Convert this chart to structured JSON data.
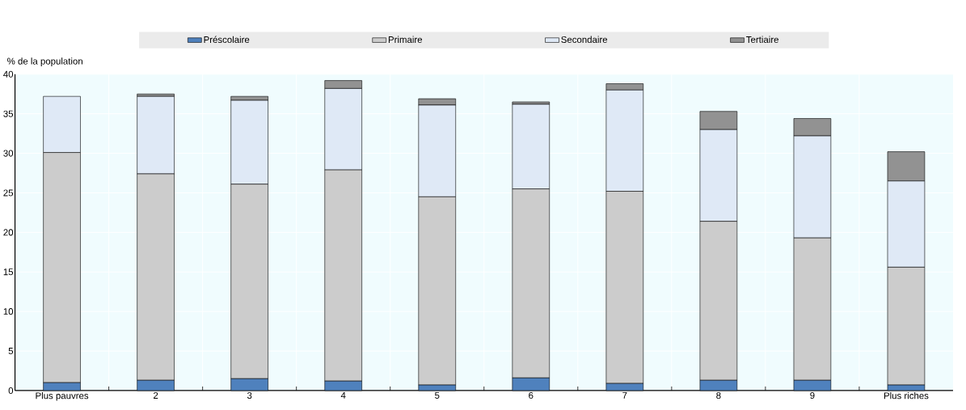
{
  "chart_data": {
    "type": "bar",
    "stacked": true,
    "ylabel": "% de la population",
    "categories": [
      "Plus pauvres",
      "2",
      "3",
      "4",
      "5",
      "6",
      "7",
      "8",
      "9",
      "Plus riches"
    ],
    "series": [
      {
        "name": "Préscolaire",
        "color": "#4f81bd",
        "values": [
          1.0,
          1.3,
          1.5,
          1.2,
          0.7,
          1.6,
          0.9,
          1.3,
          1.3,
          0.7
        ]
      },
      {
        "name": "Primaire",
        "color": "#cccccc",
        "values": [
          29.1,
          26.1,
          24.6,
          26.7,
          23.8,
          23.9,
          24.3,
          20.1,
          18.0,
          14.9
        ]
      },
      {
        "name": "Secondaire",
        "color": "#dfe9f6",
        "values": [
          7.1,
          9.8,
          10.6,
          10.3,
          11.6,
          10.7,
          12.8,
          11.6,
          12.9,
          10.9
        ]
      },
      {
        "name": "Tertiaire",
        "color": "#929292",
        "values": [
          0,
          0.3,
          0.5,
          1.0,
          0.8,
          0.3,
          0.8,
          2.3,
          2.2,
          3.7
        ]
      }
    ],
    "ylim": [
      0,
      40
    ],
    "yticks": [
      0,
      5,
      10,
      15,
      20,
      25,
      30,
      35,
      40
    ],
    "grid": true,
    "legend": "top"
  }
}
